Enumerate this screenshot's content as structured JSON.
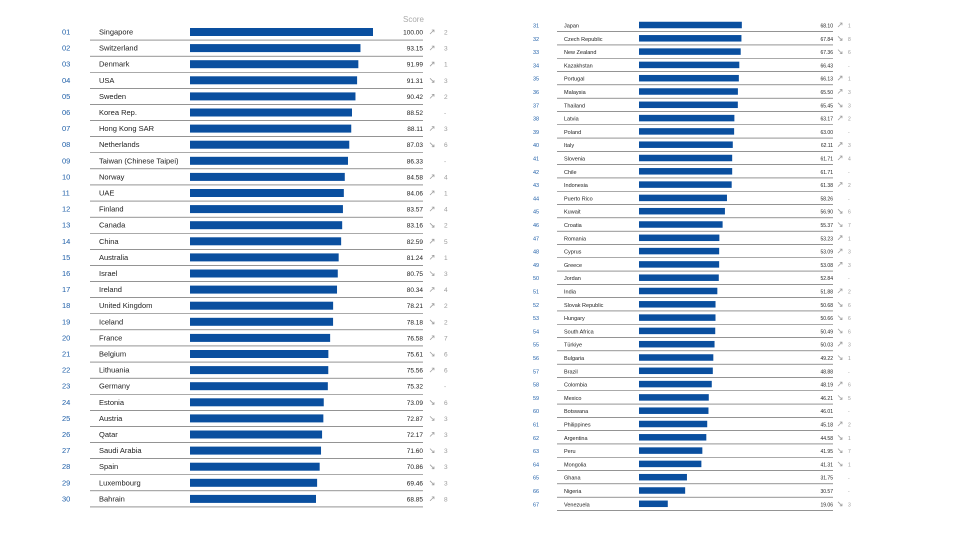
{
  "header": {
    "score_label": "Score"
  },
  "colors": {
    "bar": "#0a4f9f",
    "rank": "#1f5fa8",
    "text": "#222222",
    "muted": "#9a9a9a",
    "rule": "#555555"
  },
  "chart_data": {
    "type": "bar",
    "orientation": "horizontal",
    "xlim": [
      0,
      100
    ],
    "columns": [
      "Rank",
      "Country",
      "Score",
      "Trend",
      "Change"
    ],
    "rows": [
      {
        "rank": "01",
        "name": "Singapore",
        "value": 100.0,
        "score": "100.00",
        "trend": "up",
        "change": "2"
      },
      {
        "rank": "02",
        "name": "Switzerland",
        "value": 93.15,
        "score": "93.15",
        "trend": "up",
        "change": "3"
      },
      {
        "rank": "03",
        "name": "Denmark",
        "value": 91.99,
        "score": "91.99",
        "trend": "up",
        "change": "1"
      },
      {
        "rank": "04",
        "name": "USA",
        "value": 91.31,
        "score": "91.31",
        "trend": "down",
        "change": "3"
      },
      {
        "rank": "05",
        "name": "Sweden",
        "value": 90.42,
        "score": "90.42",
        "trend": "up",
        "change": "2"
      },
      {
        "rank": "06",
        "name": "Korea Rep.",
        "value": 88.52,
        "score": "88.52",
        "trend": "none",
        "change": "-"
      },
      {
        "rank": "07",
        "name": "Hong Kong SAR",
        "value": 88.11,
        "score": "88.11",
        "trend": "up",
        "change": "3"
      },
      {
        "rank": "08",
        "name": "Netherlands",
        "value": 87.03,
        "score": "87.03",
        "trend": "down",
        "change": "6"
      },
      {
        "rank": "09",
        "name": "Taiwan (Chinese Taipei)",
        "value": 86.33,
        "score": "86.33",
        "trend": "none",
        "change": "-"
      },
      {
        "rank": "10",
        "name": "Norway",
        "value": 84.58,
        "score": "84.58",
        "trend": "up",
        "change": "4"
      },
      {
        "rank": "11",
        "name": "UAE",
        "value": 84.06,
        "score": "84.06",
        "trend": "up",
        "change": "1"
      },
      {
        "rank": "12",
        "name": "Finland",
        "value": 83.57,
        "score": "83.57",
        "trend": "up",
        "change": "4"
      },
      {
        "rank": "13",
        "name": "Canada",
        "value": 83.16,
        "score": "83.16",
        "trend": "down",
        "change": "2"
      },
      {
        "rank": "14",
        "name": "China",
        "value": 82.59,
        "score": "82.59",
        "trend": "up",
        "change": "5"
      },
      {
        "rank": "15",
        "name": "Australia",
        "value": 81.24,
        "score": "81.24",
        "trend": "up",
        "change": "1"
      },
      {
        "rank": "16",
        "name": "Israel",
        "value": 80.75,
        "score": "80.75",
        "trend": "down",
        "change": "3"
      },
      {
        "rank": "17",
        "name": "Ireland",
        "value": 80.34,
        "score": "80.34",
        "trend": "up",
        "change": "4"
      },
      {
        "rank": "18",
        "name": "United Kingdom",
        "value": 78.21,
        "score": "78.21",
        "trend": "up",
        "change": "2"
      },
      {
        "rank": "19",
        "name": "Iceland",
        "value": 78.18,
        "score": "78.18",
        "trend": "down",
        "change": "2"
      },
      {
        "rank": "20",
        "name": "France",
        "value": 76.58,
        "score": "76.58",
        "trend": "up",
        "change": "7"
      },
      {
        "rank": "21",
        "name": "Belgium",
        "value": 75.61,
        "score": "75.61",
        "trend": "down",
        "change": "6"
      },
      {
        "rank": "22",
        "name": "Lithuania",
        "value": 75.56,
        "score": "75.56",
        "trend": "up",
        "change": "6"
      },
      {
        "rank": "23",
        "name": "Germany",
        "value": 75.32,
        "score": "75.32",
        "trend": "none",
        "change": "-"
      },
      {
        "rank": "24",
        "name": "Estonia",
        "value": 73.09,
        "score": "73.09",
        "trend": "down",
        "change": "6"
      },
      {
        "rank": "25",
        "name": "Austria",
        "value": 72.87,
        "score": "72.87",
        "trend": "down",
        "change": "3"
      },
      {
        "rank": "26",
        "name": "Qatar",
        "value": 72.17,
        "score": "72.17",
        "trend": "up",
        "change": "3"
      },
      {
        "rank": "27",
        "name": "Saudi Arabia",
        "value": 71.6,
        "score": "71.60",
        "trend": "down",
        "change": "3"
      },
      {
        "rank": "28",
        "name": "Spain",
        "value": 70.86,
        "score": "70.86",
        "trend": "down",
        "change": "3"
      },
      {
        "rank": "29",
        "name": "Luxembourg",
        "value": 69.46,
        "score": "69.46",
        "trend": "down",
        "change": "3"
      },
      {
        "rank": "30",
        "name": "Bahrain",
        "value": 68.85,
        "score": "68.85",
        "trend": "up",
        "change": "8"
      },
      {
        "rank": "31",
        "name": "Japan",
        "value": 68.1,
        "score": "68.10",
        "trend": "up",
        "change": "1"
      },
      {
        "rank": "32",
        "name": "Czech Republic",
        "value": 67.84,
        "score": "67.84",
        "trend": "down",
        "change": "8"
      },
      {
        "rank": "33",
        "name": "New Zealand",
        "value": 67.36,
        "score": "67.36",
        "trend": "down",
        "change": "6"
      },
      {
        "rank": "34",
        "name": "Kazakhstan",
        "value": 66.43,
        "score": "66.43",
        "trend": "none",
        "change": "-"
      },
      {
        "rank": "35",
        "name": "Portugal",
        "value": 66.13,
        "score": "66.13",
        "trend": "up",
        "change": "1"
      },
      {
        "rank": "36",
        "name": "Malaysia",
        "value": 65.5,
        "score": "65.50",
        "trend": "up",
        "change": "3"
      },
      {
        "rank": "37",
        "name": "Thailand",
        "value": 65.45,
        "score": "65.45",
        "trend": "down",
        "change": "3"
      },
      {
        "rank": "38",
        "name": "Latvia",
        "value": 63.17,
        "score": "63.17",
        "trend": "up",
        "change": "2"
      },
      {
        "rank": "39",
        "name": "Poland",
        "value": 63.0,
        "score": "63.00",
        "trend": "none",
        "change": "-"
      },
      {
        "rank": "40",
        "name": "Italy",
        "value": 62.11,
        "score": "62.11",
        "trend": "up",
        "change": "3"
      },
      {
        "rank": "41",
        "name": "Slovenia",
        "value": 61.71,
        "score": "61.71",
        "trend": "up",
        "change": "4"
      },
      {
        "rank": "42",
        "name": "Chile",
        "value": 61.71,
        "score": "61.71",
        "trend": "none",
        "change": "-"
      },
      {
        "rank": "43",
        "name": "Indonesia",
        "value": 61.38,
        "score": "61.38",
        "trend": "up",
        "change": "2"
      },
      {
        "rank": "44",
        "name": "Puerto Rico",
        "value": 58.26,
        "score": "58.26",
        "trend": "none",
        "change": "-"
      },
      {
        "rank": "45",
        "name": "Kuwait",
        "value": 56.9,
        "score": "56.90",
        "trend": "down",
        "change": "6"
      },
      {
        "rank": "46",
        "name": "Croatia",
        "value": 55.37,
        "score": "55.37",
        "trend": "down",
        "change": "7"
      },
      {
        "rank": "47",
        "name": "Romania",
        "value": 53.23,
        "score": "53.23",
        "trend": "up",
        "change": "1"
      },
      {
        "rank": "48",
        "name": "Cyprus",
        "value": 53.09,
        "score": "53.09",
        "trend": "up",
        "change": "3"
      },
      {
        "rank": "49",
        "name": "Greece",
        "value": 53.08,
        "score": "53.08",
        "trend": "up",
        "change": "3"
      },
      {
        "rank": "50",
        "name": "Jordan",
        "value": 52.84,
        "score": "52.84",
        "trend": "none",
        "change": "-"
      },
      {
        "rank": "51",
        "name": "India",
        "value": 51.88,
        "score": "51.88",
        "trend": "up",
        "change": "2"
      },
      {
        "rank": "52",
        "name": "Slovak Republic",
        "value": 50.68,
        "score": "50.68",
        "trend": "down",
        "change": "6"
      },
      {
        "rank": "53",
        "name": "Hungary",
        "value": 50.66,
        "score": "50.66",
        "trend": "down",
        "change": "6"
      },
      {
        "rank": "54",
        "name": "South Africa",
        "value": 50.49,
        "score": "50.49",
        "trend": "down",
        "change": "6"
      },
      {
        "rank": "55",
        "name": "Türkiye",
        "value": 50.03,
        "score": "50.03",
        "trend": "up",
        "change": "3"
      },
      {
        "rank": "56",
        "name": "Bulgaria",
        "value": 49.22,
        "score": "49.22",
        "trend": "down",
        "change": "1"
      },
      {
        "rank": "57",
        "name": "Brazil",
        "value": 48.88,
        "score": "48.88",
        "trend": "none",
        "change": "-"
      },
      {
        "rank": "58",
        "name": "Colombia",
        "value": 48.19,
        "score": "48.19",
        "trend": "up",
        "change": "6"
      },
      {
        "rank": "59",
        "name": "Mexico",
        "value": 46.21,
        "score": "46.21",
        "trend": "down",
        "change": "5"
      },
      {
        "rank": "60",
        "name": "Botswana",
        "value": 46.01,
        "score": "46.01",
        "trend": "none",
        "change": "-"
      },
      {
        "rank": "61",
        "name": "Philippines",
        "value": 45.18,
        "score": "45.18",
        "trend": "up",
        "change": "2"
      },
      {
        "rank": "62",
        "name": "Argentina",
        "value": 44.58,
        "score": "44.58",
        "trend": "down",
        "change": "1"
      },
      {
        "rank": "63",
        "name": "Peru",
        "value": 41.95,
        "score": "41.95",
        "trend": "down",
        "change": "7"
      },
      {
        "rank": "64",
        "name": "Mongolia",
        "value": 41.31,
        "score": "41.31",
        "trend": "down",
        "change": "1"
      },
      {
        "rank": "65",
        "name": "Ghana",
        "value": 31.75,
        "score": "31.75",
        "trend": "none",
        "change": "-"
      },
      {
        "rank": "66",
        "name": "Nigeria",
        "value": 30.57,
        "score": "30.57",
        "trend": "none",
        "change": "-"
      },
      {
        "rank": "67",
        "name": "Venezuela",
        "value": 19.06,
        "score": "19.06",
        "trend": "down",
        "change": "3"
      }
    ]
  }
}
